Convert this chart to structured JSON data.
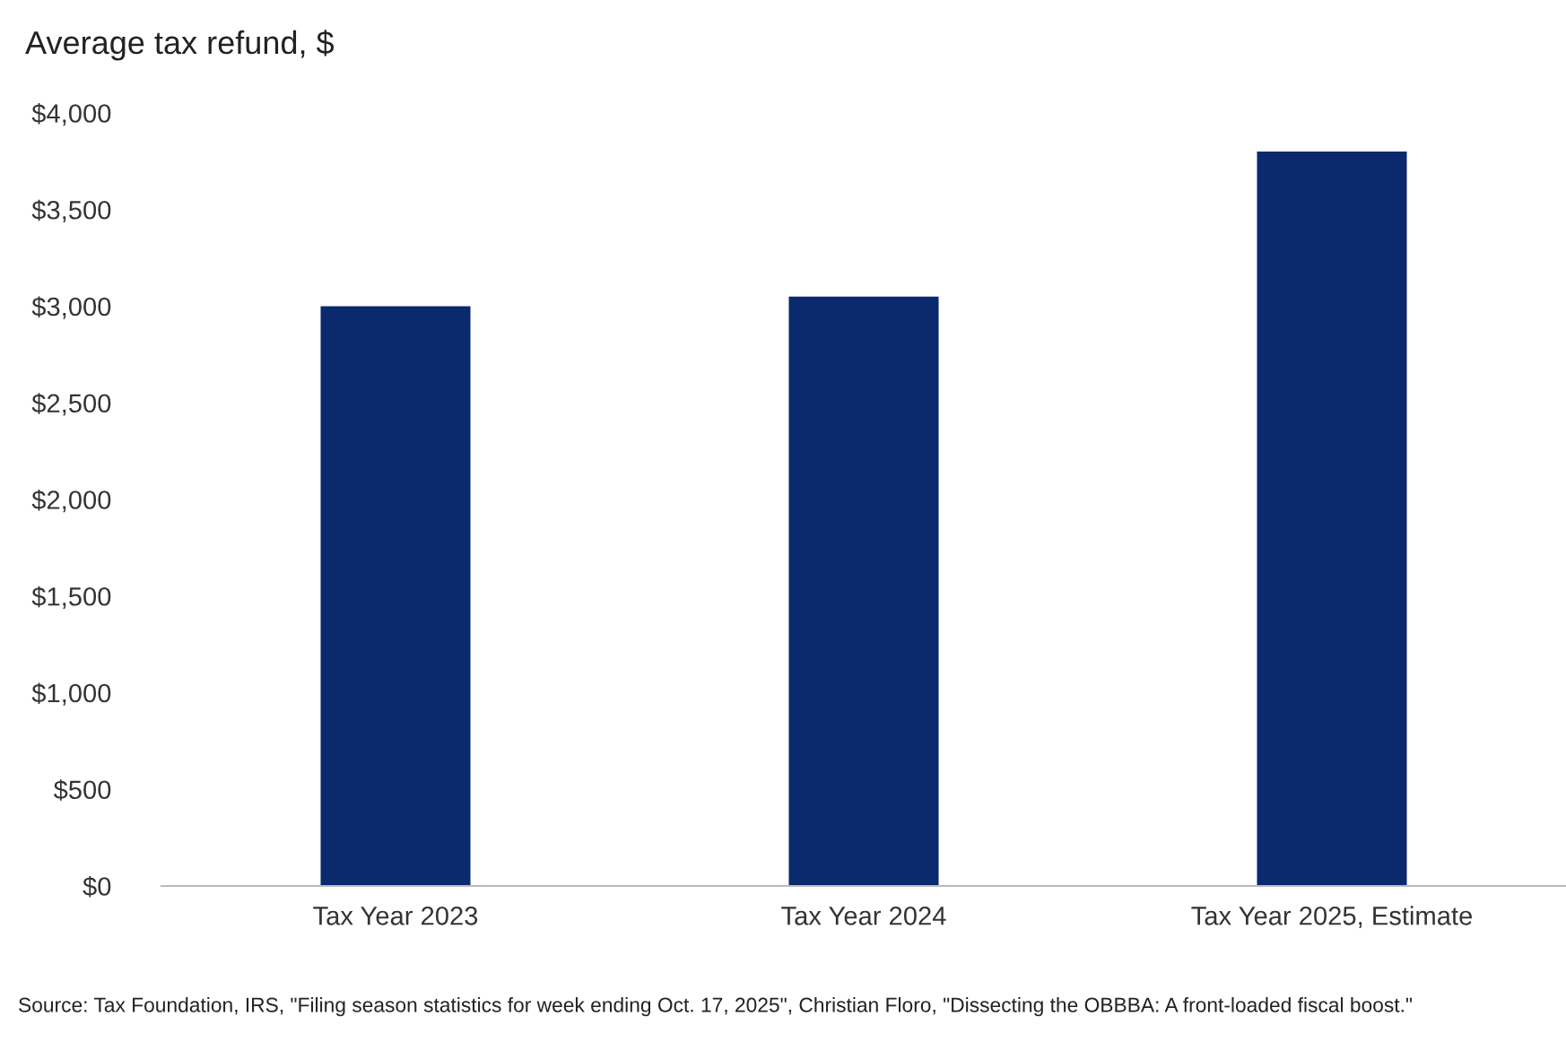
{
  "chart_data": {
    "type": "bar",
    "title": "Average tax refund, $",
    "categories": [
      "Tax Year 2023",
      "Tax Year 2024",
      "Tax Year 2025, Estimate"
    ],
    "values": [
      3000,
      3050,
      3800
    ],
    "color": "#0b2a6e",
    "ylim": [
      0,
      4000
    ],
    "yticks": [
      {
        "value": 0,
        "label": "$0"
      },
      {
        "value": 500,
        "label": "$500"
      },
      {
        "value": 1000,
        "label": "$1,000"
      },
      {
        "value": 1500,
        "label": "$1,500"
      },
      {
        "value": 2000,
        "label": "$2,000"
      },
      {
        "value": 2500,
        "label": "$2,500"
      },
      {
        "value": 3000,
        "label": "$3,000"
      },
      {
        "value": 3500,
        "label": "$3,500"
      },
      {
        "value": 4000,
        "label": "$4,000"
      }
    ],
    "grid": false,
    "legend": false,
    "annotations": [
      "Source: Tax Foundation, IRS, \"Filing season statistics for week ending Oct. 17, 2025\", Christian Floro, \"Dissecting the OBBBA: A front-loaded fiscal boost.\""
    ]
  }
}
